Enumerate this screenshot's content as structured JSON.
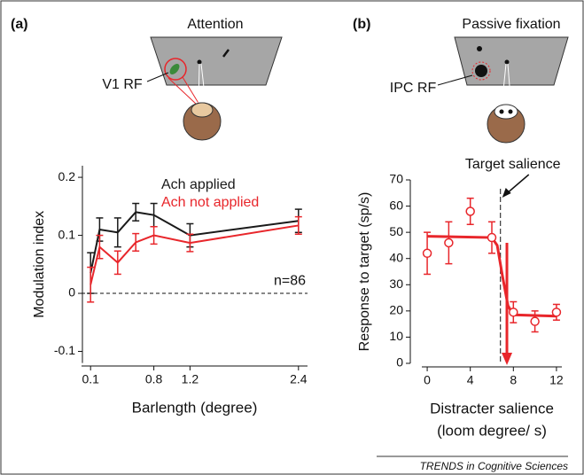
{
  "chart_data": [
    {
      "type": "line",
      "panel_label": "(a)",
      "illustration_title": "Attention",
      "illustration_label": "V1 RF",
      "xlabel": [
        "Barlength (degree)"
      ],
      "ylabel": "Modulation index",
      "x": [
        0.1,
        0.2,
        0.4,
        0.6,
        0.8,
        1.2,
        2.4
      ],
      "series": [
        {
          "name": "Ach applied",
          "color": "#1a1a1a",
          "values": [
            0.035,
            0.11,
            0.105,
            0.14,
            0.135,
            0.1,
            0.125
          ],
          "errors": [
            0.035,
            0.02,
            0.025,
            0.015,
            0.02,
            0.02,
            0.02
          ]
        },
        {
          "name": "Ach not applied",
          "color": "#e8262b",
          "values": [
            0.015,
            0.08,
            0.053,
            0.088,
            0.1,
            0.087,
            0.117
          ],
          "errors": [
            0.03,
            0.02,
            0.02,
            0.015,
            0.015,
            0.015,
            0.015
          ]
        }
      ],
      "xlim": [
        0,
        2.5
      ],
      "xticks": [
        0.1,
        0.8,
        1.2,
        2.4
      ],
      "ylim": [
        -0.12,
        0.22
      ],
      "yticks": [
        -0.1,
        0,
        0.1,
        0.2
      ],
      "reference_line": 0,
      "annotation": {
        "text": "n=86"
      },
      "legend": "upper right"
    },
    {
      "type": "scatter",
      "panel_label": "(b)",
      "illustration_title": "Passive fixation",
      "illustration_label": "IPC RF",
      "xlabel": [
        "Distracter salience",
        "(loom degree/ s)"
      ],
      "ylabel": "Response to target (sp/s)",
      "x": [
        0,
        2,
        4,
        6,
        8,
        10,
        12
      ],
      "series": [
        {
          "color": "#e8262b",
          "values": [
            42,
            46,
            58,
            48,
            19.5,
            16,
            19.5
          ],
          "errors": [
            8,
            8,
            5,
            6,
            4,
            4,
            3
          ]
        }
      ],
      "curve": {
        "x": [
          0,
          6,
          6.5,
          7,
          7.5,
          8,
          12
        ],
        "values": [
          48.5,
          48,
          45,
          33,
          22,
          18.5,
          18
        ]
      },
      "xlim": [
        -0.5,
        12.5
      ],
      "xticks": [
        0,
        4,
        8,
        12
      ],
      "ylim": [
        0,
        70
      ],
      "yticks": [
        0,
        10,
        20,
        30,
        40,
        50,
        60,
        70
      ],
      "annotation": {
        "text": "Target salience",
        "x": 6.8,
        "arrow_x": 7.4,
        "arrow_top": 46
      }
    }
  ],
  "source": "TRENDS in Cognitive Sciences"
}
